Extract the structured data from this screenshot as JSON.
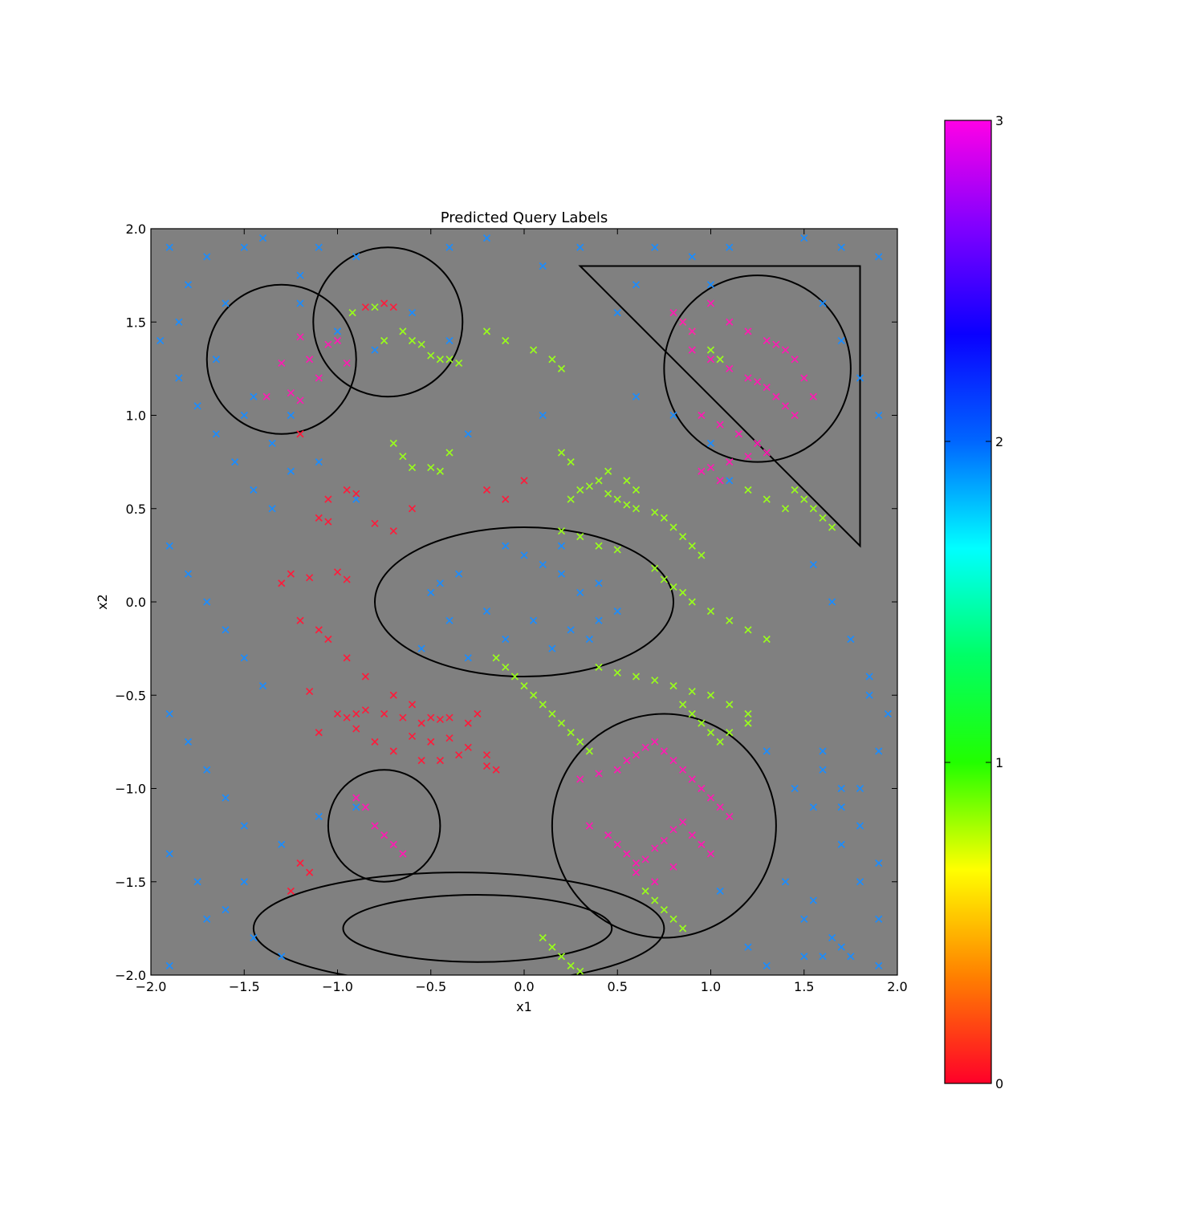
{
  "chart_data": {
    "type": "scatter",
    "title": "Predicted Query Labels",
    "xlabel": "x1",
    "ylabel": "x2",
    "xlim": [
      -2.0,
      2.0
    ],
    "ylim": [
      -2.0,
      2.0
    ],
    "x_ticks": [
      "−2.0",
      "−1.5",
      "−1.0",
      "−0.5",
      "0.0",
      "0.5",
      "1.0",
      "1.5",
      "2.0"
    ],
    "y_ticks": [
      "−2.0",
      "−1.5",
      "−1.0",
      "−0.5",
      "0.0",
      "0.5",
      "1.0",
      "1.5",
      "2.0"
    ],
    "background_color": "#808080",
    "marker": "x",
    "grid": false,
    "colorbar": {
      "min": 0,
      "max": 3,
      "ticks": [
        "0",
        "1",
        "2",
        "3"
      ],
      "colormap": "gist_rainbow_r",
      "stops": [
        "#ff0029",
        "#ff8000",
        "#ffff00",
        "#22ff00",
        "#00ff66",
        "#00ffff",
        "#0066ff",
        "#0a00ff",
        "#8000ff",
        "#ff00e6"
      ]
    },
    "class_colors": {
      "0": "#ff1a3a",
      "1": "#99ff1a",
      "2": "#1a8cff",
      "3": "#ff1ab3"
    },
    "shapes": [
      {
        "kind": "circle",
        "cx": -1.3,
        "cy": 1.3,
        "r": 0.4
      },
      {
        "kind": "circle",
        "cx": -0.73,
        "cy": 1.5,
        "r": 0.4
      },
      {
        "kind": "circle",
        "cx": 1.25,
        "cy": 1.25,
        "r": 0.5
      },
      {
        "kind": "circle",
        "cx": -0.75,
        "cy": -1.2,
        "r": 0.3
      },
      {
        "kind": "circle",
        "cx": 0.75,
        "cy": -1.2,
        "r": 0.6
      },
      {
        "kind": "ellipse",
        "cx": 0.0,
        "cy": 0.0,
        "rx": 0.8,
        "ry": 0.4
      },
      {
        "kind": "ellipse",
        "cx": -0.35,
        "cy": -1.75,
        "rx": 1.1,
        "ry": 0.3
      },
      {
        "kind": "ellipse",
        "cx": -0.25,
        "cy": -1.75,
        "rx": 0.72,
        "ry": 0.18
      },
      {
        "kind": "polygon",
        "points": [
          [
            0.3,
            1.8
          ],
          [
            1.8,
            1.8
          ],
          [
            1.8,
            0.3
          ]
        ]
      }
    ],
    "series": [
      {
        "label": 2,
        "x": [
          -1.9,
          -1.8,
          -1.7,
          -1.6,
          -1.5,
          -1.4,
          -1.2,
          -1.1,
          -0.9,
          -0.4,
          -0.2,
          0.1,
          0.3,
          1.5,
          1.7,
          1.9,
          -1.95,
          -1.85,
          -1.75,
          -1.65,
          -1.55,
          -1.45,
          -1.35,
          -1.9,
          -1.8,
          -1.7,
          -1.6,
          -1.5,
          -1.4,
          -1.9,
          -1.8,
          -1.7,
          -1.6,
          -1.5,
          -1.9,
          -1.75,
          -1.6,
          -1.45,
          -1.3,
          -1.9,
          -1.7,
          -1.5,
          -1.3,
          -1.1,
          -0.9,
          -1.85,
          -1.65,
          -1.45,
          -1.25,
          1.6,
          1.7,
          1.8,
          1.9,
          1.55,
          1.65,
          1.75,
          1.85,
          1.95,
          1.6,
          1.7,
          1.8,
          1.9,
          1.55,
          1.65,
          1.75,
          1.85,
          1.6,
          1.7,
          1.8,
          1.9,
          1.4,
          1.5,
          1.6,
          1.7,
          1.8,
          1.9,
          1.3,
          1.5,
          1.7,
          1.9,
          0.5,
          0.6,
          0.7,
          0.9,
          1.0,
          1.1,
          0.6,
          0.8,
          1.0,
          1.1,
          -0.1,
          0.0,
          0.1,
          0.2,
          0.3,
          0.4,
          -0.2,
          0.05,
          0.25,
          0.4,
          0.5,
          -0.5,
          -0.4,
          -0.35,
          -0.1,
          0.15,
          0.35,
          -0.55,
          -0.45,
          -0.3,
          0.2,
          -1.2,
          -1.0,
          -0.8,
          -0.6,
          -0.4,
          -1.1,
          -0.9,
          -0.3,
          0.1,
          -1.5,
          -1.35,
          -1.25,
          1.3,
          1.45,
          1.55,
          1.05,
          1.2
        ],
        "y": [
          1.9,
          1.7,
          1.85,
          1.6,
          1.9,
          1.95,
          1.75,
          1.9,
          1.85,
          1.9,
          1.95,
          1.8,
          1.9,
          1.95,
          1.9,
          1.85,
          1.4,
          1.2,
          1.05,
          0.9,
          0.75,
          0.6,
          0.5,
          0.3,
          0.15,
          0.0,
          -0.15,
          -0.3,
          -0.45,
          -0.6,
          -0.75,
          -0.9,
          -1.05,
          -1.2,
          -1.35,
          -1.5,
          -1.65,
          -1.8,
          -1.9,
          -1.95,
          -1.7,
          -1.5,
          -1.3,
          -1.15,
          -1.1,
          1.5,
          1.3,
          1.1,
          1.0,
          1.6,
          1.4,
          1.2,
          1.0,
          0.2,
          0.0,
          -0.2,
          -0.4,
          -0.6,
          -0.8,
          -1.0,
          -1.2,
          -1.4,
          -1.6,
          -1.8,
          -1.9,
          -0.5,
          -0.9,
          -1.1,
          -1.5,
          -1.7,
          -1.5,
          -1.7,
          -1.9,
          -1.3,
          -1.0,
          -0.8,
          -1.95,
          -1.9,
          -1.85,
          -1.95,
          1.55,
          1.7,
          1.9,
          1.85,
          1.7,
          1.9,
          1.1,
          1.0,
          0.85,
          0.65,
          0.3,
          0.25,
          0.2,
          0.15,
          0.05,
          0.1,
          -0.05,
          -0.1,
          -0.15,
          -0.1,
          -0.05,
          0.05,
          -0.1,
          0.15,
          -0.2,
          -0.25,
          -0.2,
          -0.25,
          0.1,
          -0.3,
          0.3,
          1.6,
          1.45,
          1.35,
          1.55,
          1.4,
          0.75,
          0.55,
          0.9,
          1.0,
          1.0,
          0.85,
          0.7,
          -0.8,
          -1.0,
          -1.1,
          -1.55,
          -1.85
        ],
        "colors": "class_colors.2"
      },
      {
        "label": 0,
        "x": [
          -0.85,
          -0.75,
          -0.7,
          -1.2,
          -0.95,
          -1.05,
          -0.9,
          -1.1,
          -1.05,
          -0.8,
          -0.7,
          -0.6,
          -1.3,
          -1.25,
          -1.15,
          -1.0,
          -0.95,
          -1.2,
          -1.1,
          -1.05,
          -0.95,
          -0.85,
          -0.7,
          -0.6,
          -1.15,
          -1.0,
          -0.95,
          -0.9,
          -0.85,
          -0.75,
          -0.65,
          -0.55,
          -0.5,
          -0.45,
          -0.4,
          -0.3,
          -0.25,
          -1.1,
          -0.9,
          -0.8,
          -0.6,
          -0.5,
          -0.4,
          -0.3,
          -0.2,
          -0.7,
          -0.55,
          -0.45,
          -0.35,
          -0.2,
          -0.15,
          -1.2,
          -1.15,
          -1.25,
          0.0,
          -0.1,
          -0.2
        ],
        "y": [
          1.58,
          1.6,
          1.58,
          0.9,
          0.6,
          0.55,
          0.58,
          0.45,
          0.43,
          0.42,
          0.38,
          0.5,
          0.1,
          0.15,
          0.13,
          0.16,
          0.12,
          -0.1,
          -0.15,
          -0.2,
          -0.3,
          -0.4,
          -0.5,
          -0.55,
          -0.48,
          -0.6,
          -0.62,
          -0.6,
          -0.58,
          -0.6,
          -0.62,
          -0.65,
          -0.62,
          -0.63,
          -0.62,
          -0.65,
          -0.6,
          -0.7,
          -0.68,
          -0.75,
          -0.72,
          -0.75,
          -0.73,
          -0.78,
          -0.82,
          -0.8,
          -0.85,
          -0.85,
          -0.82,
          -0.88,
          -0.9,
          -1.4,
          -1.45,
          -1.55,
          0.65,
          0.55,
          0.6
        ],
        "colors": "class_colors.0"
      },
      {
        "label": 1,
        "x": [
          -0.92,
          -0.8,
          -0.75,
          -0.65,
          -0.6,
          -0.55,
          -0.5,
          -0.45,
          -0.4,
          -0.35,
          -0.6,
          -0.65,
          -0.7,
          -0.5,
          -0.45,
          -0.4,
          0.25,
          0.3,
          0.35,
          0.4,
          0.45,
          0.5,
          0.55,
          0.6,
          0.7,
          0.75,
          0.8,
          0.85,
          0.9,
          0.95,
          0.7,
          0.75,
          0.8,
          0.85,
          0.9,
          1.0,
          1.1,
          1.2,
          1.3,
          0.4,
          0.5,
          0.6,
          0.7,
          0.8,
          0.9,
          1.0,
          1.1,
          1.2,
          0.2,
          0.3,
          0.4,
          0.5,
          -0.15,
          -0.1,
          -0.05,
          0.0,
          0.05,
          0.1,
          0.15,
          0.2,
          0.25,
          0.3,
          0.35,
          0.85,
          0.9,
          0.95,
          1.0,
          1.05,
          1.1,
          1.2,
          0.65,
          0.7,
          0.75,
          0.8,
          0.85,
          0.1,
          0.15,
          0.2,
          0.25,
          0.3,
          0.2,
          0.25,
          0.45,
          0.55,
          0.6,
          0.85,
          0.9,
          1.0,
          1.05,
          1.2,
          1.3,
          1.4,
          1.45,
          1.5,
          1.55,
          1.6,
          1.65,
          -0.2,
          -0.1,
          0.05,
          0.15,
          0.2
        ],
        "y": [
          1.55,
          1.58,
          1.4,
          1.45,
          1.4,
          1.38,
          1.32,
          1.3,
          1.3,
          1.28,
          0.72,
          0.78,
          0.85,
          0.72,
          0.7,
          0.8,
          0.55,
          0.6,
          0.62,
          0.65,
          0.58,
          0.55,
          0.52,
          0.5,
          0.48,
          0.45,
          0.4,
          0.35,
          0.3,
          0.25,
          0.18,
          0.12,
          0.08,
          0.05,
          0.0,
          -0.05,
          -0.1,
          -0.15,
          -0.2,
          -0.35,
          -0.38,
          -0.4,
          -0.42,
          -0.45,
          -0.48,
          -0.5,
          -0.55,
          -0.6,
          0.38,
          0.35,
          0.3,
          0.28,
          -0.3,
          -0.35,
          -0.4,
          -0.45,
          -0.5,
          -0.55,
          -0.6,
          -0.65,
          -0.7,
          -0.75,
          -0.8,
          -0.55,
          -0.6,
          -0.65,
          -0.7,
          -0.75,
          -0.7,
          -0.65,
          -1.55,
          -1.6,
          -1.65,
          -1.7,
          -1.75,
          -1.8,
          -1.85,
          -1.9,
          -1.95,
          -1.98,
          0.8,
          0.75,
          0.7,
          0.65,
          0.6,
          1.5,
          1.45,
          1.35,
          1.3,
          0.6,
          0.55,
          0.5,
          0.6,
          0.55,
          0.5,
          0.45,
          0.4,
          1.45,
          1.4,
          1.35,
          1.3,
          1.25
        ],
        "colors": "class_colors.1"
      },
      {
        "label": 3,
        "x": [
          -1.38,
          -1.3,
          -1.2,
          -1.15,
          -1.1,
          -1.05,
          -1.0,
          -1.25,
          -1.2,
          -0.95,
          0.8,
          0.85,
          0.9,
          1.0,
          1.1,
          1.2,
          1.3,
          1.35,
          1.4,
          1.45,
          1.5,
          1.55,
          0.9,
          1.0,
          1.1,
          1.2,
          1.25,
          1.3,
          1.35,
          1.4,
          1.45,
          0.95,
          1.05,
          1.15,
          1.25,
          1.3,
          1.2,
          1.1,
          1.0,
          0.95,
          1.05,
          -0.9,
          -0.85,
          -0.8,
          -0.75,
          -0.7,
          -0.65,
          0.3,
          0.4,
          0.5,
          0.55,
          0.6,
          0.65,
          0.7,
          0.75,
          0.8,
          0.85,
          0.9,
          0.95,
          1.0,
          1.05,
          1.1,
          0.35,
          0.45,
          0.5,
          0.55,
          0.6,
          0.65,
          0.7,
          0.75,
          0.8,
          0.85,
          0.9,
          0.95,
          1.0,
          0.6,
          0.7,
          0.8
        ],
        "y": [
          1.1,
          1.28,
          1.42,
          1.3,
          1.2,
          1.38,
          1.4,
          1.12,
          1.08,
          1.28,
          1.55,
          1.5,
          1.45,
          1.6,
          1.5,
          1.45,
          1.4,
          1.38,
          1.35,
          1.3,
          1.2,
          1.1,
          1.35,
          1.3,
          1.25,
          1.2,
          1.18,
          1.15,
          1.1,
          1.05,
          1.0,
          1.0,
          0.95,
          0.9,
          0.85,
          0.8,
          0.78,
          0.75,
          0.72,
          0.7,
          0.65,
          -1.05,
          -1.1,
          -1.2,
          -1.25,
          -1.3,
          -1.35,
          -0.95,
          -0.92,
          -0.9,
          -0.85,
          -0.82,
          -0.78,
          -0.75,
          -0.8,
          -0.85,
          -0.9,
          -0.95,
          -1.0,
          -1.05,
          -1.1,
          -1.15,
          -1.2,
          -1.25,
          -1.3,
          -1.35,
          -1.4,
          -1.38,
          -1.32,
          -1.28,
          -1.22,
          -1.18,
          -1.25,
          -1.3,
          -1.35,
          -1.45,
          -1.5,
          -1.42
        ],
        "colors": "class_colors.3"
      }
    ]
  }
}
